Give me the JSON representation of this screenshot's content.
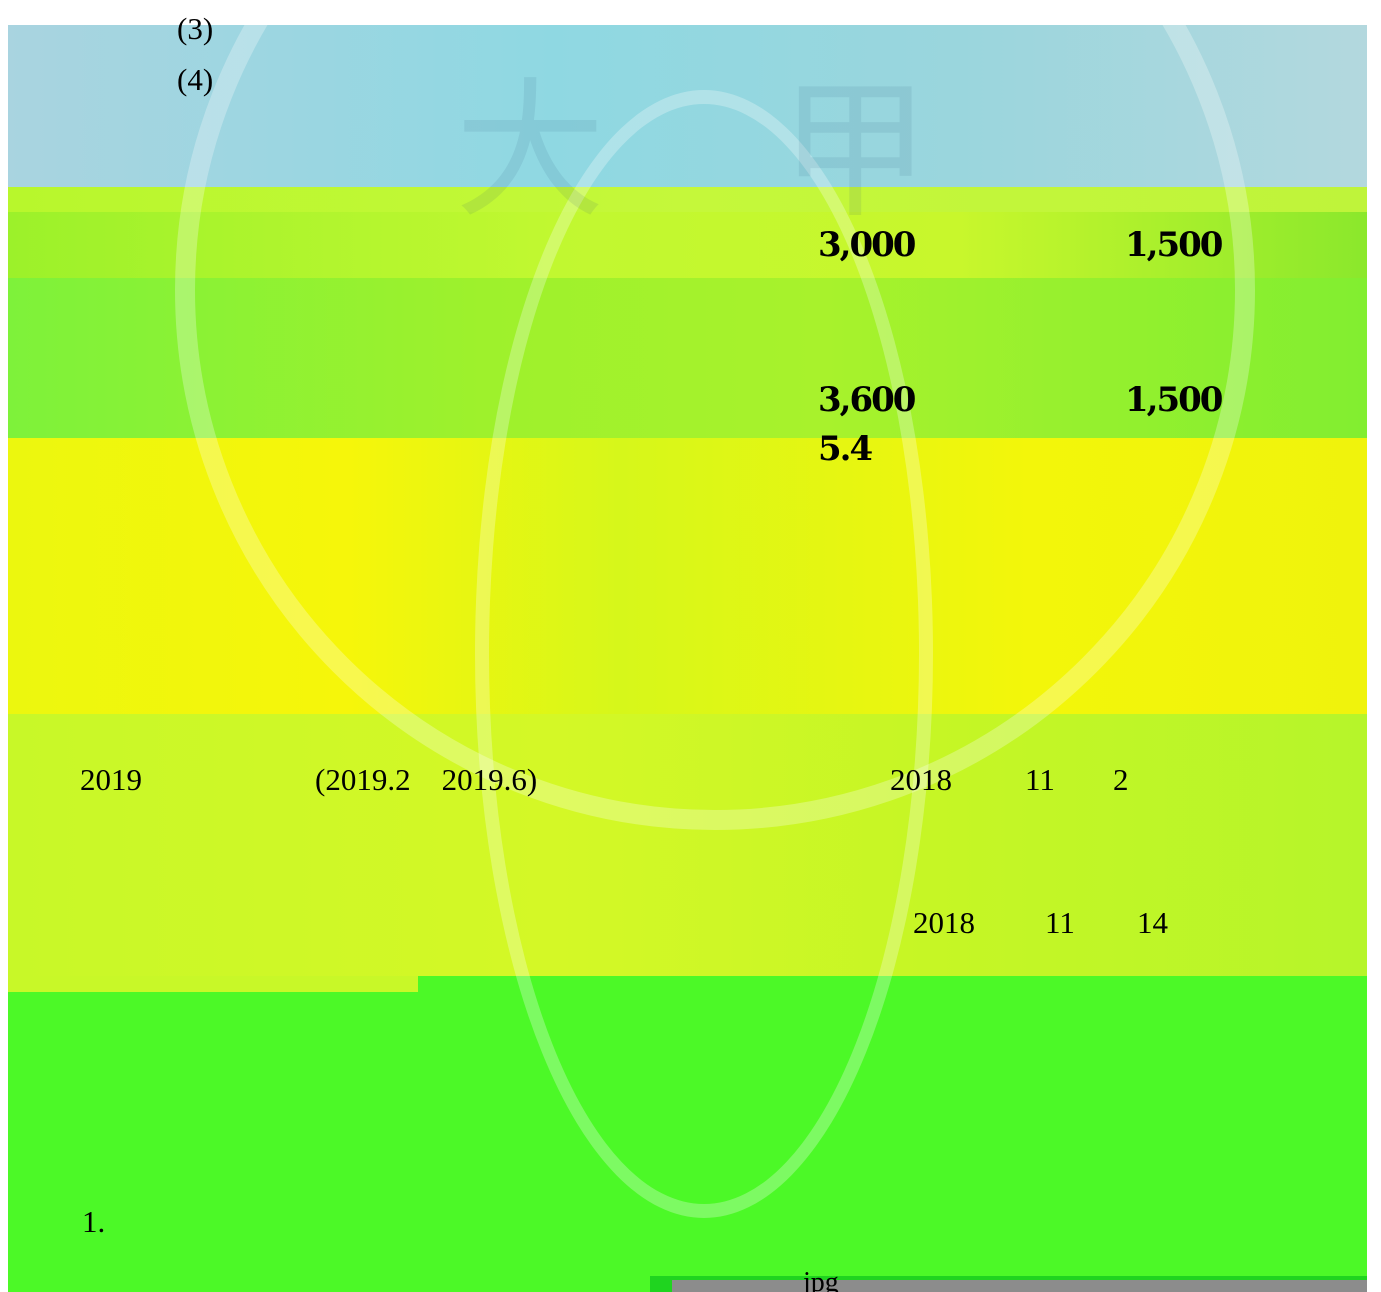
{
  "list_items": {
    "item3": "(3)",
    "item4": "(4)"
  },
  "fees": {
    "row1": {
      "amount_a": "3,000",
      "amount_b": "1,500"
    },
    "row2": {
      "amount_a": "3,600",
      "amount_b": "1,500",
      "note": "5.4"
    }
  },
  "schedule": {
    "year": "2019",
    "period": "(2019.2    2019.6)",
    "date1_year": "2018",
    "date1_month": "11",
    "date1_day": "2",
    "date2_year": "2018",
    "date2_month": "11",
    "date2_day": "14"
  },
  "section": {
    "item1": "1."
  },
  "attachment": {
    "label": "jpg"
  },
  "watermark": {
    "char_left": "大",
    "char_right": "甲"
  },
  "colors": {
    "top_band": "#9ad6dd",
    "green_band": "#9ef12c",
    "yellow_band": "#f6f60a",
    "bottom_band": "#4cf927"
  }
}
